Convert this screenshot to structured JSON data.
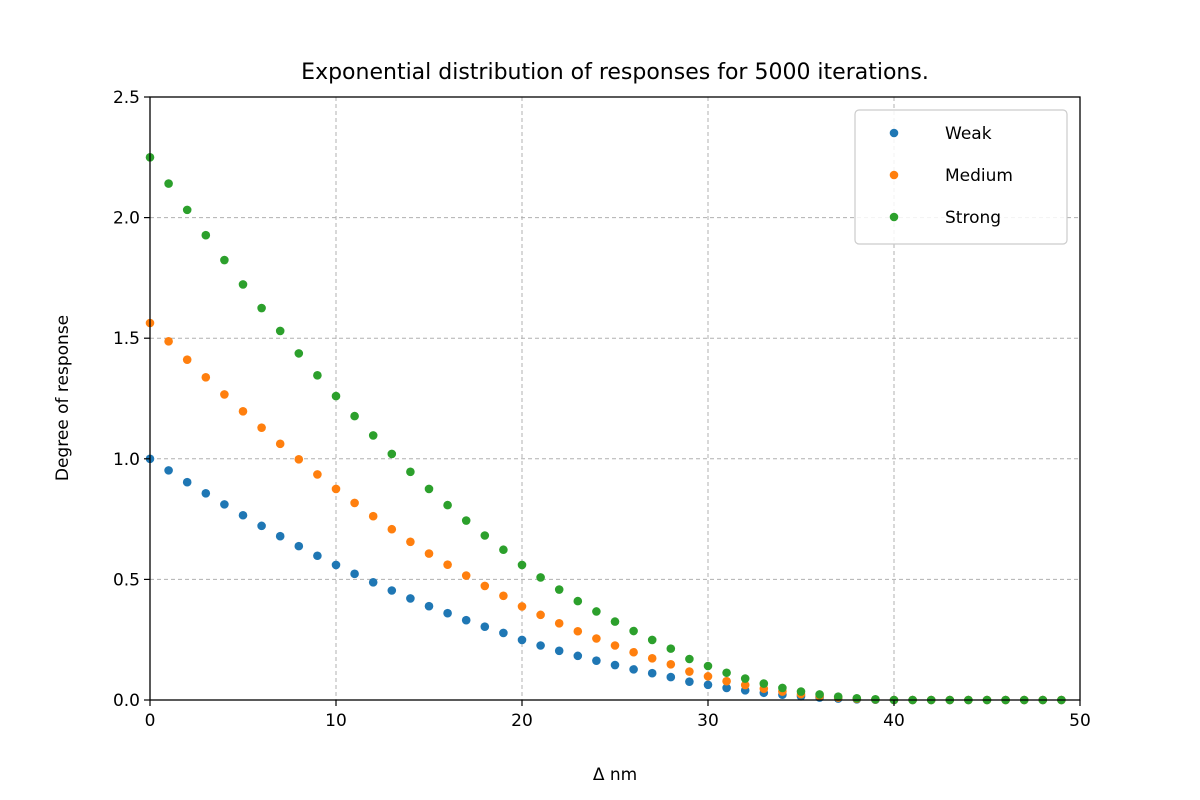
{
  "chart_data": {
    "type": "scatter",
    "title": "Exponential distribution of responses for 5000 iterations.",
    "xlabel": "Δ nm",
    "ylabel": "Degree of response",
    "xlim": [
      0,
      50
    ],
    "ylim": [
      0,
      2.5
    ],
    "xticks": [
      "0",
      "10",
      "20",
      "30",
      "40",
      "50"
    ],
    "yticks": [
      "0.0",
      "0.5",
      "1.0",
      "1.5",
      "2.0",
      "2.5"
    ],
    "grid": true,
    "legend_position": "top-right",
    "x": [
      0,
      1,
      2,
      3,
      4,
      5,
      6,
      7,
      8,
      9,
      10,
      11,
      12,
      13,
      14,
      15,
      16,
      17,
      18,
      19,
      20,
      21,
      22,
      23,
      24,
      25,
      26,
      27,
      28,
      29,
      30,
      31,
      32,
      33,
      34,
      35,
      36,
      37,
      38,
      39,
      40,
      41,
      42,
      43,
      44,
      45,
      46,
      47,
      48,
      49
    ],
    "series": [
      {
        "name": "Weak",
        "color": "#1f77b4",
        "values": [
          1.0,
          0.952,
          0.903,
          0.857,
          0.811,
          0.766,
          0.722,
          0.679,
          0.638,
          0.598,
          0.56,
          0.523,
          0.488,
          0.454,
          0.421,
          0.389,
          0.36,
          0.331,
          0.304,
          0.278,
          0.249,
          0.226,
          0.204,
          0.183,
          0.163,
          0.145,
          0.127,
          0.111,
          0.095,
          0.076,
          0.063,
          0.05,
          0.04,
          0.03,
          0.022,
          0.015,
          0.01,
          0.006,
          0.003,
          0.001,
          0.0,
          0.0,
          0.0,
          0.0,
          0.0,
          0.0,
          0.0,
          0.0,
          0.0,
          0.0
        ]
      },
      {
        "name": "Medium",
        "color": "#ff7f0e",
        "values": [
          1.563,
          1.487,
          1.411,
          1.338,
          1.267,
          1.197,
          1.129,
          1.062,
          0.998,
          0.935,
          0.875,
          0.817,
          0.762,
          0.708,
          0.656,
          0.607,
          0.561,
          0.516,
          0.473,
          0.432,
          0.388,
          0.353,
          0.318,
          0.285,
          0.255,
          0.226,
          0.198,
          0.173,
          0.148,
          0.118,
          0.098,
          0.078,
          0.062,
          0.047,
          0.035,
          0.024,
          0.016,
          0.01,
          0.005,
          0.002,
          0.0,
          0.0,
          0.0,
          0.0,
          0.0,
          0.0,
          0.0,
          0.0,
          0.0,
          0.0
        ]
      },
      {
        "name": "Strong",
        "color": "#2ca02c",
        "values": [
          2.25,
          2.141,
          2.032,
          1.927,
          1.824,
          1.723,
          1.625,
          1.53,
          1.437,
          1.346,
          1.26,
          1.177,
          1.097,
          1.02,
          0.946,
          0.875,
          0.808,
          0.744,
          0.682,
          0.623,
          0.56,
          0.508,
          0.458,
          0.41,
          0.367,
          0.325,
          0.286,
          0.249,
          0.213,
          0.17,
          0.141,
          0.113,
          0.089,
          0.068,
          0.05,
          0.035,
          0.023,
          0.014,
          0.007,
          0.003,
          0.0,
          0.0,
          0.0,
          0.0,
          0.0,
          0.0,
          0.0,
          0.0,
          0.0,
          0.0
        ]
      }
    ]
  }
}
